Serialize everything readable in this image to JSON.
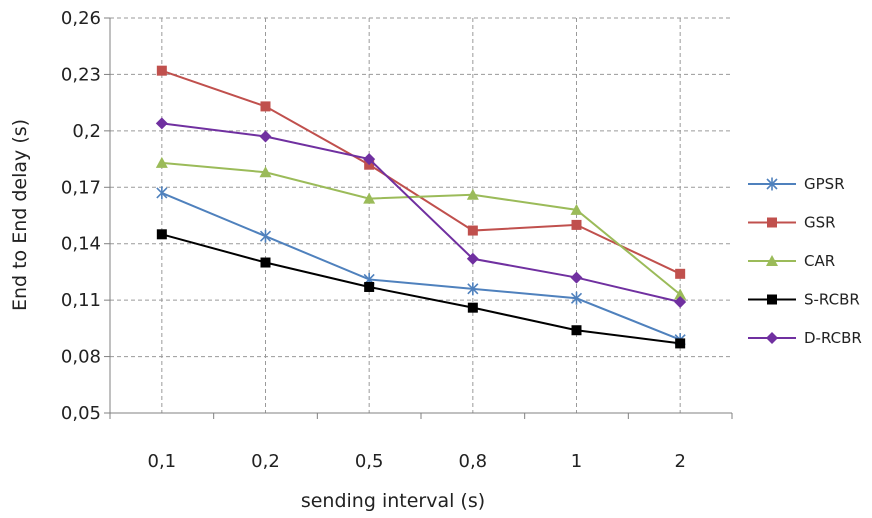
{
  "chart_data": {
    "type": "line",
    "title": "",
    "xlabel": "sending interval (s)",
    "ylabel": "End to End delay (s)",
    "categories": [
      "0,1",
      "0,2",
      "0,5",
      "0,8",
      "1",
      "2"
    ],
    "ylim": [
      0.05,
      0.26
    ],
    "yticks": [
      "0,05",
      "0,08",
      "0,11",
      "0,14",
      "0,17",
      "0,2",
      "0,23",
      "0,26"
    ],
    "ytick_values": [
      0.05,
      0.08,
      0.11,
      0.14,
      0.17,
      0.2,
      0.23,
      0.26
    ],
    "grid": true,
    "legend_position": "right",
    "series": [
      {
        "name": "GPSR",
        "color": "#4f81bd",
        "marker": "star",
        "values": [
          0.167,
          0.144,
          0.121,
          0.116,
          0.111,
          0.089
        ]
      },
      {
        "name": "GSR",
        "color": "#c0504d",
        "marker": "square",
        "values": [
          0.232,
          0.213,
          0.182,
          0.147,
          0.15,
          0.124
        ]
      },
      {
        "name": "CAR",
        "color": "#9bbb59",
        "marker": "triangle",
        "values": [
          0.183,
          0.178,
          0.164,
          0.166,
          0.158,
          0.113
        ]
      },
      {
        "name": "S-RCBR",
        "color": "#000000",
        "marker": "square",
        "values": [
          0.145,
          0.13,
          0.117,
          0.106,
          0.094,
          0.087
        ]
      },
      {
        "name": "D-RCBR",
        "color": "#7030a0",
        "marker": "diamond",
        "values": [
          0.204,
          0.197,
          0.185,
          0.132,
          0.122,
          0.109
        ]
      }
    ]
  }
}
